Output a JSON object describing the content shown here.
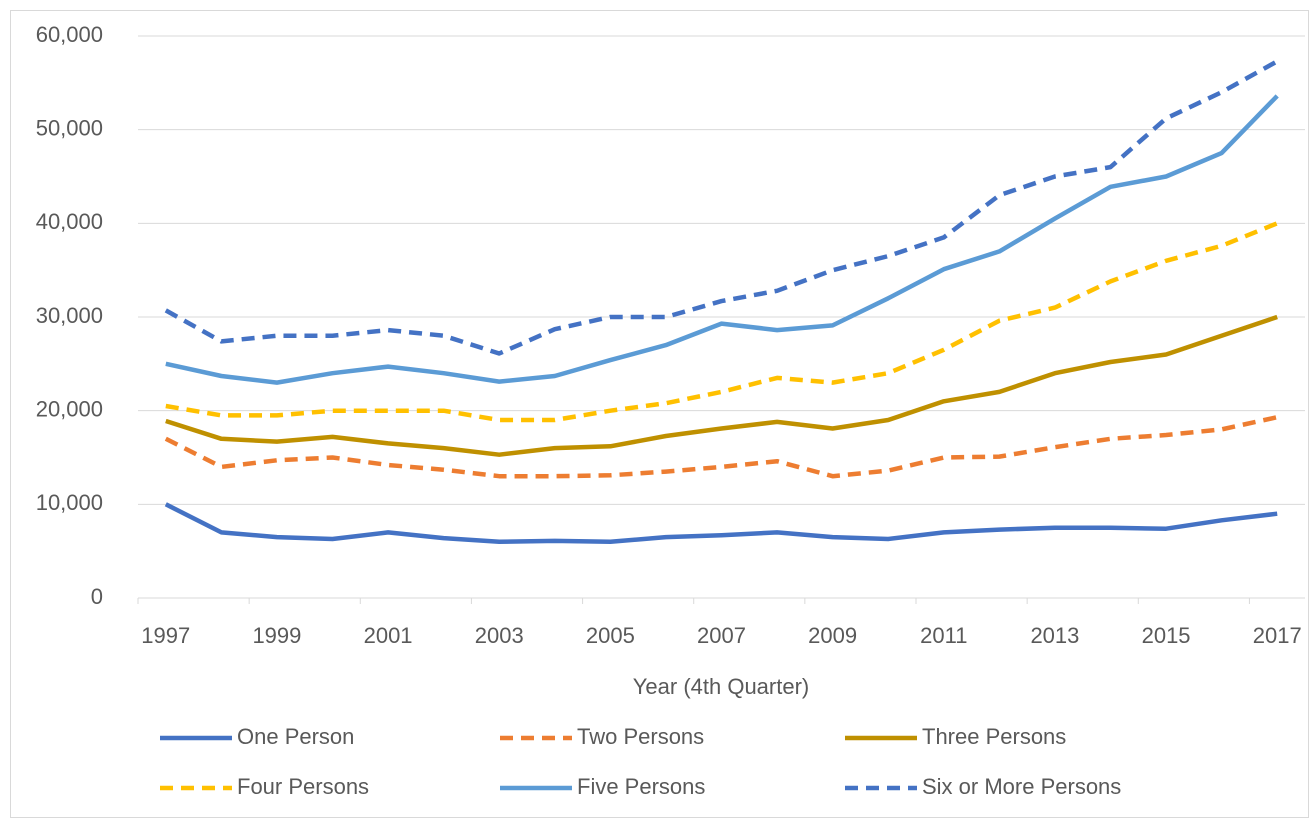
{
  "chart_data": {
    "type": "line",
    "x_label": "Year (4th Quarter)",
    "categories": [
      1997,
      null,
      1999,
      null,
      2001,
      null,
      2003,
      null,
      2005,
      null,
      2007,
      null,
      2009,
      null,
      2011,
      null,
      2013,
      null,
      2015,
      null,
      2017
    ],
    "ylim": [
      0,
      60000
    ],
    "yticks": [
      0,
      {
        "value": 10000,
        "label": "10,000"
      },
      {
        "value": 20000,
        "label": "20,000"
      },
      {
        "value": 30000,
        "label": "30,000"
      },
      {
        "value": 40000,
        "label": "40,000"
      },
      {
        "value": 50000,
        "label": "50,000"
      },
      {
        "value": 60000,
        "label": "60,000"
      }
    ],
    "grid": true,
    "legend": "bottom",
    "series": [
      {
        "name": "One Person",
        "color": "#4472c4",
        "dashed": false,
        "values": [
          10000,
          7000,
          6500,
          6300,
          7000,
          6400,
          6000,
          6100,
          6000,
          6500,
          6700,
          7000,
          6500,
          6300,
          7000,
          7300,
          7500,
          7500,
          7400,
          8300,
          9000
        ]
      },
      {
        "name": "Two Persons",
        "color": "#ed7d31",
        "dashed": true,
        "values": [
          17000,
          14000,
          14700,
          15000,
          14200,
          13700,
          13000,
          13000,
          13100,
          13500,
          14000,
          14600,
          13000,
          13600,
          15000,
          15100,
          16100,
          17000,
          17400,
          18000,
          19300
        ]
      },
      {
        "name": "Three Persons",
        "color": "#bf9000",
        "dashed": false,
        "values": [
          18900,
          17000,
          16700,
          17200,
          16500,
          16000,
          15300,
          16000,
          16200,
          17300,
          18100,
          18800,
          18100,
          19000,
          21000,
          22000,
          24000,
          25200,
          26000,
          28000,
          30000
        ]
      },
      {
        "name": "Four Persons",
        "color": "#ffc000",
        "dashed": true,
        "values": [
          20500,
          19500,
          19500,
          20000,
          20000,
          20000,
          19000,
          19000,
          20000,
          20800,
          22000,
          23500,
          23000,
          24000,
          26500,
          29600,
          31000,
          33800,
          36000,
          37600,
          40000
        ]
      },
      {
        "name": "Five Persons",
        "color": "#5b9bd5",
        "dashed": false,
        "values": [
          25000,
          23700,
          23000,
          24000,
          24700,
          24000,
          23100,
          23700,
          25400,
          27000,
          29300,
          28600,
          29100,
          32000,
          35100,
          37000,
          40500,
          43900,
          45000,
          47500,
          53600
        ]
      },
      {
        "name": "Six or More Persons",
        "color": "#4472c4",
        "dashed": true,
        "values": [
          30700,
          27400,
          28000,
          28000,
          28600,
          28000,
          26100,
          28700,
          30000,
          30000,
          31700,
          32800,
          35000,
          36500,
          38500,
          43000,
          45000,
          46000,
          51200,
          54000,
          57300
        ]
      }
    ]
  }
}
